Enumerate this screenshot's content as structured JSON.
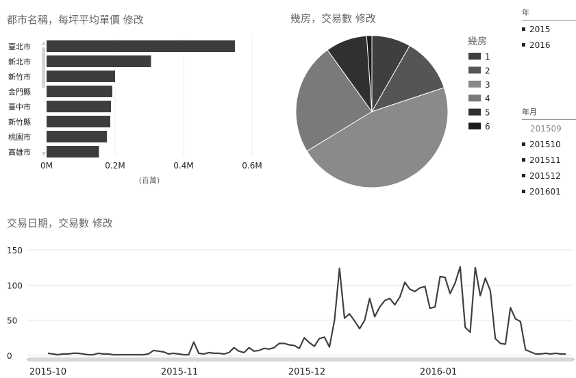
{
  "bar_panel": {
    "title": "都市名稱，每坪平均單價 修改",
    "unit_label": "(百萬)"
  },
  "pie_panel": {
    "title": "幾房，交易數 修改",
    "legend_title": "幾房"
  },
  "line_panel": {
    "title": "交易日期，交易數 修改"
  },
  "slicer_year": {
    "header": "年",
    "items": [
      "2015",
      "2016"
    ]
  },
  "slicer_month": {
    "header": "年月",
    "items": [
      {
        "label": "201509",
        "selected": false
      },
      {
        "label": "201510",
        "selected": true
      },
      {
        "label": "201511",
        "selected": true
      },
      {
        "label": "201512",
        "selected": true
      },
      {
        "label": "201601",
        "selected": true
      }
    ]
  },
  "colors": {
    "bar": "#3d3d3d",
    "line": "#404040",
    "grid": "#e6e6e6"
  },
  "chart_data": [
    {
      "type": "bar",
      "orientation": "horizontal",
      "categories": [
        "臺北市",
        "新北市",
        "新竹市",
        "金門縣",
        "臺中市",
        "新竹縣",
        "桃園市",
        "高雄市"
      ],
      "values": [
        0.55,
        0.305,
        0.2,
        0.192,
        0.188,
        0.186,
        0.176,
        0.153
      ],
      "xticks": [
        "0M",
        "0.2M",
        "0.4M",
        "0.6M"
      ],
      "xlim": [
        0,
        0.6
      ],
      "xlabel": "(百萬)"
    },
    {
      "type": "pie",
      "legend_title": "幾房",
      "labels": [
        "1",
        "2",
        "3",
        "4",
        "5",
        "6"
      ],
      "values": [
        7.5,
        10.5,
        42,
        21.5,
        8,
        1
      ],
      "colors": [
        "#3f3f3f",
        "#555555",
        "#8a8a8a",
        "#7a7a7a",
        "#303030",
        "#1c1c1c"
      ]
    },
    {
      "type": "line",
      "ylim": [
        0,
        150
      ],
      "yticks": [
        0,
        50,
        100,
        150
      ],
      "xticks": [
        "2015-10",
        "2015-11",
        "2015-12",
        "2016-01"
      ],
      "x_start": "2015-10-01",
      "x_end": "2016-01-31",
      "values": [
        3,
        2,
        1,
        2,
        2,
        3,
        3,
        2,
        1,
        1,
        3,
        2,
        2,
        1,
        1,
        1,
        1,
        1,
        1,
        1,
        2,
        7,
        6,
        5,
        2,
        3,
        2,
        1,
        1,
        19,
        3,
        2,
        4,
        3,
        3,
        2,
        4,
        11,
        6,
        4,
        11,
        6,
        7,
        10,
        9,
        11,
        17,
        17,
        15,
        14,
        10,
        25,
        18,
        13,
        24,
        26,
        12,
        50,
        124,
        53,
        59,
        49,
        38,
        50,
        81,
        55,
        69,
        78,
        81,
        72,
        83,
        104,
        94,
        91,
        96,
        98,
        67,
        69,
        112,
        111,
        88,
        103,
        126,
        40,
        33,
        125,
        85,
        110,
        92,
        24,
        17,
        16,
        68,
        52,
        48,
        8,
        5,
        2,
        2,
        3,
        2,
        3,
        2,
        2
      ]
    }
  ]
}
